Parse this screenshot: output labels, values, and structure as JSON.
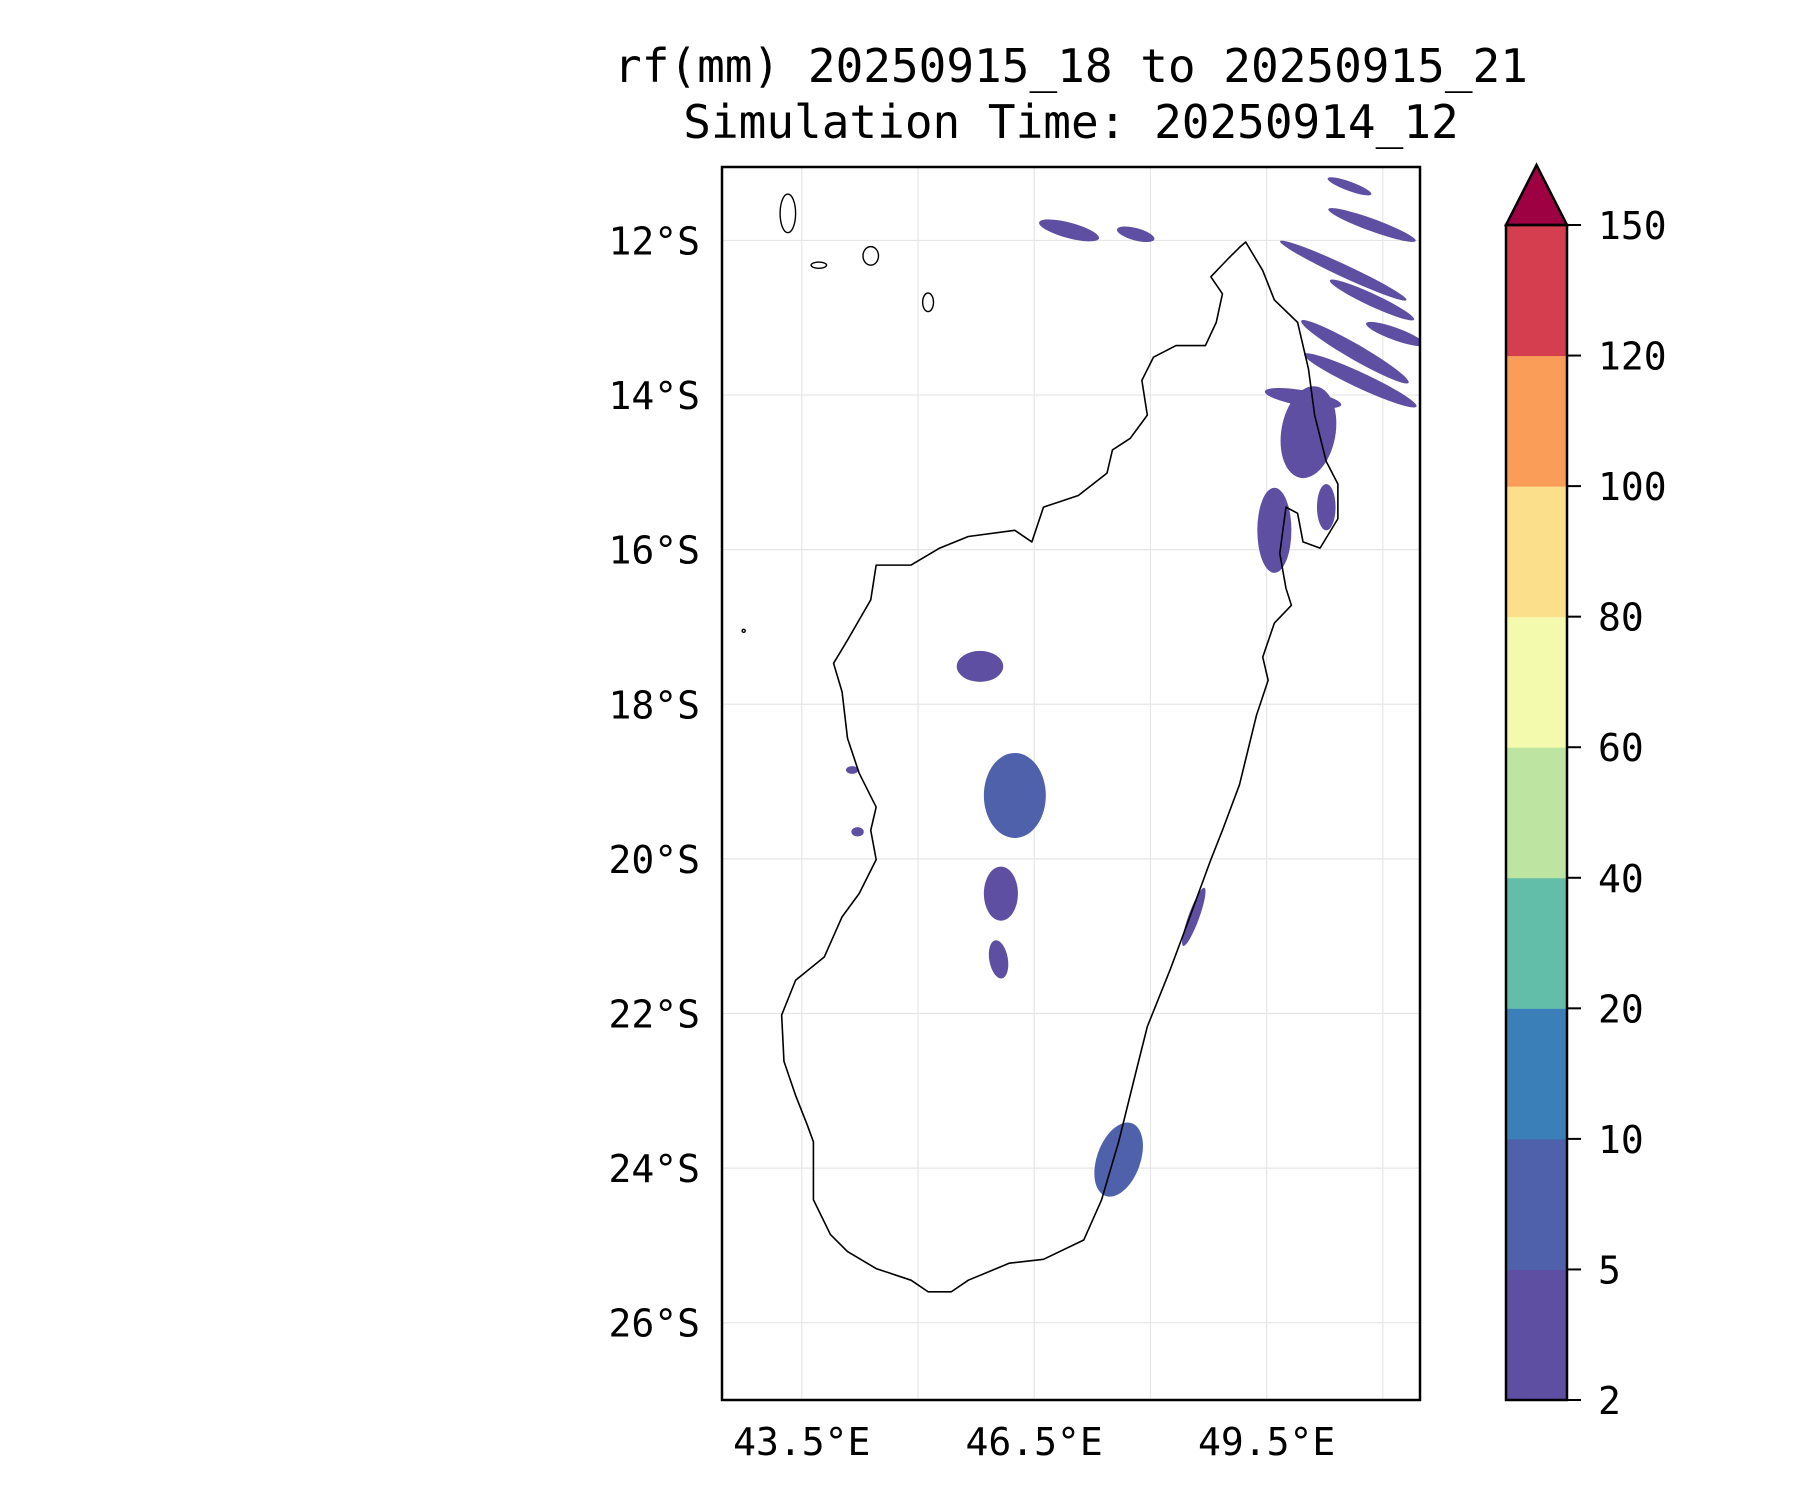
{
  "chart_data": {
    "type": "heatmap",
    "title_line1": "rf(mm) 20250915_18 to 20250915_21",
    "title_line2": "Simulation Time: 20250914_12",
    "xlim": [
      42.47,
      51.48
    ],
    "ylim": [
      -27.0,
      -11.05
    ],
    "xticks": [
      43.5,
      46.5,
      49.5
    ],
    "xtick_labels": [
      "43.5°E",
      "46.5°E",
      "49.5°E"
    ],
    "xgrid": [
      43.5,
      45.0,
      46.5,
      48.0,
      49.5,
      51.0
    ],
    "yticks": [
      -12,
      -14,
      -16,
      -18,
      -20,
      -22,
      -24,
      -26
    ],
    "ytick_labels": [
      "12°S",
      "14°S",
      "16°S",
      "18°S",
      "20°S",
      "22°S",
      "24°S",
      "26°S"
    ],
    "grid": true,
    "colorbar": {
      "levels": [
        2,
        5,
        10,
        20,
        40,
        60,
        80,
        100,
        120,
        150
      ],
      "level_labels": [
        "2",
        "5",
        "10",
        "20",
        "40",
        "60",
        "80",
        "100",
        "120",
        "150"
      ],
      "colors": [
        "#5e4fa2",
        "#4f61ab",
        "#3a7fb8",
        "#62bda9",
        "#bde4a0",
        "#f3faad",
        "#fcdf8a",
        "#f99d59",
        "#d53e4f"
      ],
      "extend_color": "#9e0142",
      "extend": "max",
      "placement": "right"
    },
    "coastline": [
      [
        49.23,
        -12.02
      ],
      [
        49.45,
        -12.39
      ],
      [
        49.6,
        -12.77
      ],
      [
        49.9,
        -13.06
      ],
      [
        50.04,
        -13.66
      ],
      [
        50.12,
        -14.26
      ],
      [
        50.27,
        -14.86
      ],
      [
        50.42,
        -15.15
      ],
      [
        50.42,
        -15.6
      ],
      [
        50.19,
        -15.98
      ],
      [
        49.97,
        -15.9
      ],
      [
        49.9,
        -15.53
      ],
      [
        49.75,
        -15.45
      ],
      [
        49.67,
        -16.05
      ],
      [
        49.75,
        -16.5
      ],
      [
        49.82,
        -16.72
      ],
      [
        49.6,
        -16.95
      ],
      [
        49.45,
        -17.39
      ],
      [
        49.52,
        -17.69
      ],
      [
        49.37,
        -18.14
      ],
      [
        49.15,
        -19.04
      ],
      [
        48.93,
        -19.63
      ],
      [
        48.78,
        -20.01
      ],
      [
        48.48,
        -20.83
      ],
      [
        48.26,
        -21.42
      ],
      [
        47.96,
        -22.17
      ],
      [
        47.81,
        -22.77
      ],
      [
        47.59,
        -23.66
      ],
      [
        47.37,
        -24.41
      ],
      [
        47.14,
        -24.93
      ],
      [
        46.62,
        -25.18
      ],
      [
        46.18,
        -25.23
      ],
      [
        45.65,
        -25.45
      ],
      [
        45.43,
        -25.6
      ],
      [
        45.13,
        -25.6
      ],
      [
        44.91,
        -25.45
      ],
      [
        44.46,
        -25.3
      ],
      [
        44.09,
        -25.08
      ],
      [
        43.87,
        -24.86
      ],
      [
        43.65,
        -24.41
      ],
      [
        43.65,
        -23.66
      ],
      [
        43.57,
        -23.44
      ],
      [
        43.42,
        -23.06
      ],
      [
        43.27,
        -22.62
      ],
      [
        43.24,
        -22.02
      ],
      [
        43.42,
        -21.57
      ],
      [
        43.79,
        -21.27
      ],
      [
        44.02,
        -20.75
      ],
      [
        44.24,
        -20.45
      ],
      [
        44.46,
        -20.01
      ],
      [
        44.39,
        -19.63
      ],
      [
        44.46,
        -19.33
      ],
      [
        44.24,
        -18.89
      ],
      [
        44.09,
        -18.44
      ],
      [
        44.02,
        -17.84
      ],
      [
        43.91,
        -17.47
      ],
      [
        44.09,
        -17.17
      ],
      [
        44.39,
        -16.65
      ],
      [
        44.46,
        -16.2
      ],
      [
        44.91,
        -16.2
      ],
      [
        45.28,
        -15.98
      ],
      [
        45.65,
        -15.83
      ],
      [
        46.25,
        -15.75
      ],
      [
        46.47,
        -15.9
      ],
      [
        46.62,
        -15.45
      ],
      [
        47.07,
        -15.3
      ],
      [
        47.44,
        -15.01
      ],
      [
        47.51,
        -14.71
      ],
      [
        47.74,
        -14.56
      ],
      [
        47.96,
        -14.26
      ],
      [
        47.89,
        -13.81
      ],
      [
        48.04,
        -13.51
      ],
      [
        48.33,
        -13.36
      ],
      [
        48.71,
        -13.36
      ],
      [
        48.85,
        -13.06
      ],
      [
        48.93,
        -12.69
      ],
      [
        48.78,
        -12.47
      ],
      [
        49.0,
        -12.24
      ],
      [
        49.15,
        -12.09
      ]
    ],
    "islands": [
      [
        43.32,
        -11.65,
        0.1,
        0.25
      ],
      [
        43.72,
        -12.32,
        0.1,
        0.04
      ],
      [
        44.39,
        -12.2,
        0.1,
        0.12
      ],
      [
        45.13,
        -12.8,
        0.07,
        0.12
      ],
      [
        42.75,
        -17.05,
        0.02,
        0.02
      ]
    ],
    "rain_cells": [
      {
        "lon": 45.8,
        "lat": -17.51,
        "rx": 0.3,
        "ry": 0.2,
        "angle": 0,
        "value": 4
      },
      {
        "lon": 46.25,
        "lat": -19.18,
        "rx": 0.4,
        "ry": 0.55,
        "angle": 0,
        "value": 6
      },
      {
        "lon": 46.07,
        "lat": -20.45,
        "rx": 0.22,
        "ry": 0.35,
        "angle": 0,
        "value": 4
      },
      {
        "lon": 46.04,
        "lat": -21.3,
        "rx": 0.12,
        "ry": 0.25,
        "angle": -10,
        "value": 3
      },
      {
        "lon": 50.04,
        "lat": -14.48,
        "rx": 0.35,
        "ry": 0.6,
        "angle": 10,
        "value": 4
      },
      {
        "lon": 49.97,
        "lat": -14.04,
        "rx": 0.5,
        "ry": 0.1,
        "angle": 10,
        "value": 3
      },
      {
        "lon": 49.6,
        "lat": -15.75,
        "rx": 0.22,
        "ry": 0.55,
        "angle": 0,
        "value": 4
      },
      {
        "lon": 50.27,
        "lat": -15.45,
        "rx": 0.12,
        "ry": 0.3,
        "angle": 0,
        "value": 3
      },
      {
        "lon": 46.95,
        "lat": -11.87,
        "rx": 0.4,
        "ry": 0.1,
        "angle": 15,
        "value": 3
      },
      {
        "lon": 47.81,
        "lat": -11.92,
        "rx": 0.25,
        "ry": 0.08,
        "angle": 15,
        "value": 3
      },
      {
        "lon": 47.59,
        "lat": -23.89,
        "rx": 0.28,
        "ry": 0.5,
        "angle": 20,
        "value": 6
      },
      {
        "lon": 48.56,
        "lat": -20.75,
        "rx": 0.07,
        "ry": 0.4,
        "angle": 20,
        "value": 3
      },
      {
        "lon": 50.49,
        "lat": -12.39,
        "rx": 0.9,
        "ry": 0.08,
        "angle": 25,
        "value": 3
      },
      {
        "lon": 50.86,
        "lat": -11.8,
        "rx": 0.6,
        "ry": 0.08,
        "angle": 20,
        "value": 3
      },
      {
        "lon": 50.86,
        "lat": -12.77,
        "rx": 0.6,
        "ry": 0.08,
        "angle": 25,
        "value": 3
      },
      {
        "lon": 50.64,
        "lat": -13.44,
        "rx": 0.8,
        "ry": 0.1,
        "angle": 30,
        "value": 3
      },
      {
        "lon": 50.71,
        "lat": -13.81,
        "rx": 0.8,
        "ry": 0.1,
        "angle": 25,
        "value": 3
      },
      {
        "lon": 51.16,
        "lat": -13.21,
        "rx": 0.4,
        "ry": 0.08,
        "angle": 20,
        "value": 3
      },
      {
        "lon": 50.57,
        "lat": -11.3,
        "rx": 0.3,
        "ry": 0.06,
        "angle": 20,
        "value": 3
      },
      {
        "lon": 44.15,
        "lat": -18.85,
        "rx": 0.08,
        "ry": 0.05,
        "angle": 0,
        "value": 3
      },
      {
        "lon": 44.22,
        "lat": -19.65,
        "rx": 0.08,
        "ry": 0.06,
        "angle": 0,
        "value": 3
      }
    ]
  }
}
